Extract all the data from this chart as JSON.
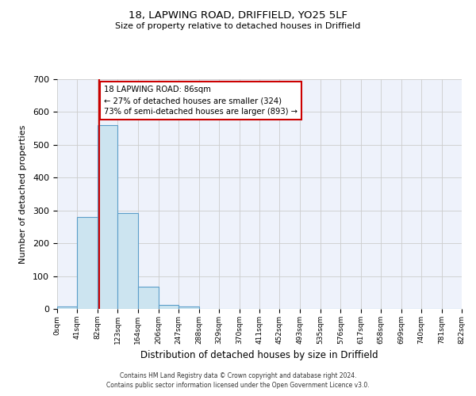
{
  "title_line1": "18, LAPWING ROAD, DRIFFIELD, YO25 5LF",
  "title_line2": "Size of property relative to detached houses in Driffield",
  "xlabel": "Distribution of detached houses by size in Driffield",
  "ylabel": "Number of detached properties",
  "bar_edges": [
    0,
    41,
    82,
    123,
    164,
    206,
    247,
    288,
    329,
    370,
    411,
    452,
    493,
    535,
    576,
    617,
    658,
    699,
    740,
    781,
    822
  ],
  "bar_heights": [
    7,
    281,
    560,
    292,
    67,
    13,
    8,
    0,
    0,
    0,
    0,
    0,
    0,
    0,
    0,
    0,
    0,
    0,
    0,
    0
  ],
  "bar_color": "#cce4f0",
  "bar_edge_color": "#5b9dc9",
  "property_line_x": 86,
  "property_line_color": "#cc0000",
  "annotation_box_color": "#cc0000",
  "annotation_text_line1": "18 LAPWING ROAD: 86sqm",
  "annotation_text_line2": "← 27% of detached houses are smaller (324)",
  "annotation_text_line3": "73% of semi-detached houses are larger (893) →",
  "ylim": [
    0,
    700
  ],
  "yticks": [
    0,
    100,
    200,
    300,
    400,
    500,
    600,
    700
  ],
  "tick_labels": [
    "0sqm",
    "41sqm",
    "82sqm",
    "123sqm",
    "164sqm",
    "206sqm",
    "247sqm",
    "288sqm",
    "329sqm",
    "370sqm",
    "411sqm",
    "452sqm",
    "493sqm",
    "535sqm",
    "576sqm",
    "617sqm",
    "658sqm",
    "699sqm",
    "740sqm",
    "781sqm",
    "822sqm"
  ],
  "footer_line1": "Contains HM Land Registry data © Crown copyright and database right 2024.",
  "footer_line2": "Contains public sector information licensed under the Open Government Licence v3.0.",
  "background_color": "#eef2fb",
  "grid_color": "#cccccc"
}
